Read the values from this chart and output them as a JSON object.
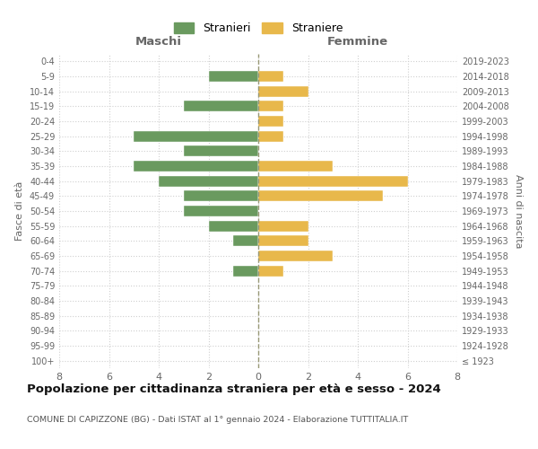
{
  "age_groups": [
    "100+",
    "95-99",
    "90-94",
    "85-89",
    "80-84",
    "75-79",
    "70-74",
    "65-69",
    "60-64",
    "55-59",
    "50-54",
    "45-49",
    "40-44",
    "35-39",
    "30-34",
    "25-29",
    "20-24",
    "15-19",
    "10-14",
    "5-9",
    "0-4"
  ],
  "birth_years": [
    "≤ 1923",
    "1924-1928",
    "1929-1933",
    "1934-1938",
    "1939-1943",
    "1944-1948",
    "1949-1953",
    "1954-1958",
    "1959-1963",
    "1964-1968",
    "1969-1973",
    "1974-1978",
    "1979-1983",
    "1984-1988",
    "1989-1993",
    "1994-1998",
    "1999-2003",
    "2004-2008",
    "2009-2013",
    "2014-2018",
    "2019-2023"
  ],
  "maschi": [
    0,
    0,
    0,
    0,
    0,
    0,
    1,
    0,
    1,
    2,
    3,
    3,
    4,
    5,
    3,
    5,
    0,
    3,
    0,
    2,
    0
  ],
  "femmine": [
    0,
    0,
    0,
    0,
    0,
    0,
    1,
    3,
    2,
    2,
    0,
    5,
    6,
    3,
    0,
    1,
    1,
    1,
    2,
    1,
    0
  ],
  "color_maschi": "#6a9a5f",
  "color_femmine": "#e8b84b",
  "title": "Popolazione per cittadinanza straniera per età e sesso - 2024",
  "subtitle": "COMUNE DI CAPIZZONE (BG) - Dati ISTAT al 1° gennaio 2024 - Elaborazione TUTTITALIA.IT",
  "label_maschi": "Stranieri",
  "label_femmine": "Straniere",
  "xlabel_left": "Maschi",
  "xlabel_right": "Femmine",
  "ylabel_left": "Fasce di età",
  "ylabel_right": "Anni di nascita",
  "xlim": 8,
  "background_color": "#ffffff",
  "grid_color": "#d0d0d0"
}
